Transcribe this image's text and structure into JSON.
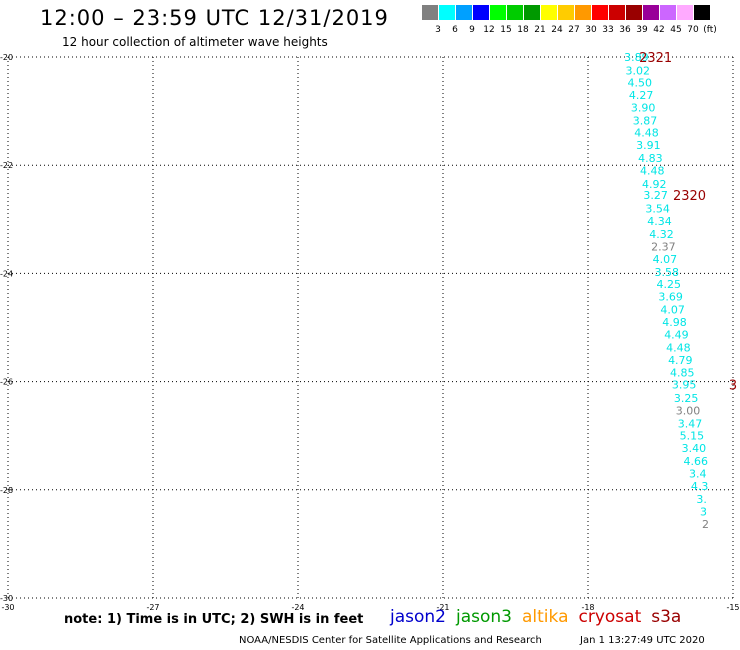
{
  "header": {
    "title": "12:00 – 23:59 UTC 12/31/2019",
    "subtitle": "12 hour collection of altimeter wave heights"
  },
  "legend_scale": {
    "labels": [
      "3",
      "6",
      "9",
      "12",
      "15",
      "18",
      "21",
      "24",
      "27",
      "30",
      "33",
      "36",
      "39",
      "42",
      "45",
      "70",
      "(ft)"
    ],
    "colors": [
      "#808080",
      "#00ffff",
      "#00a0ff",
      "#0000ff",
      "#00ff00",
      "#00cc00",
      "#009900",
      "#ffff00",
      "#ffcc00",
      "#ff9900",
      "#ff0000",
      "#cc0000",
      "#990000",
      "#990099",
      "#cc66ff",
      "#ffaaff",
      "#000000"
    ]
  },
  "footer": {
    "note": "note: 1) Time is in UTC; 2) SWH is in feet",
    "credit": "NOAA/NESDIS Center for Satellite Applications and Research",
    "timestamp": "Jan  1 13:27:49 UTC 2020"
  },
  "satellites": [
    {
      "name": "jason2",
      "color": "#0000cc"
    },
    {
      "name": "jason3",
      "color": "#009900"
    },
    {
      "name": "altika",
      "color": "#ff9900"
    },
    {
      "name": "cryosat",
      "color": "#cc0000"
    },
    {
      "name": "s3a",
      "color": "#990000"
    }
  ],
  "chart_data": {
    "type": "scatter",
    "x_ticks": [
      "-30",
      "-27",
      "-24",
      "-21",
      "-18",
      "-15"
    ],
    "y_ticks": [
      "-20",
      "-22",
      "-24",
      "-26",
      "-28",
      "-30"
    ],
    "xlim": [
      -30,
      -15
    ],
    "ylim": [
      -30,
      -20
    ],
    "grid": true,
    "track_labels": [
      {
        "text": "2321",
        "lon": -16.6,
        "lat": -20.0,
        "color": "#990000"
      },
      {
        "text": "2320",
        "lon": -15.9,
        "lat": -22.55,
        "color": "#990000"
      },
      {
        "text": "3",
        "lon": -15.0,
        "lat": -26.05,
        "color": "#990000"
      }
    ],
    "points": [
      {
        "lon": -17.0,
        "lat": -20.0,
        "value": "3.89",
        "color": "#00e5e5"
      },
      {
        "lon": -16.97,
        "lat": -20.25,
        "value": "3.02",
        "color": "#00e5e5"
      },
      {
        "lon": -16.93,
        "lat": -20.47,
        "value": "4.50",
        "color": "#00e5e5"
      },
      {
        "lon": -16.9,
        "lat": -20.7,
        "value": "4.27",
        "color": "#00e5e5"
      },
      {
        "lon": -16.86,
        "lat": -20.93,
        "value": "3.90",
        "color": "#00e5e5"
      },
      {
        "lon": -16.82,
        "lat": -21.17,
        "value": "3.87",
        "color": "#00e5e5"
      },
      {
        "lon": -16.79,
        "lat": -21.4,
        "value": "4.48",
        "color": "#00e5e5"
      },
      {
        "lon": -16.75,
        "lat": -21.63,
        "value": "3.91",
        "color": "#00e5e5"
      },
      {
        "lon": -16.71,
        "lat": -21.87,
        "value": "4.83",
        "color": "#00e5e5"
      },
      {
        "lon": -16.67,
        "lat": -22.1,
        "value": "4.48",
        "color": "#00e5e5"
      },
      {
        "lon": -16.63,
        "lat": -22.35,
        "value": "4.92",
        "color": "#00e5e5"
      },
      {
        "lon": -16.6,
        "lat": -22.55,
        "value": "3.27",
        "color": "#00e5e5"
      },
      {
        "lon": -16.56,
        "lat": -22.8,
        "value": "3.54",
        "color": "#00e5e5"
      },
      {
        "lon": -16.52,
        "lat": -23.03,
        "value": "4.34",
        "color": "#00e5e5"
      },
      {
        "lon": -16.48,
        "lat": -23.27,
        "value": "4.32",
        "color": "#00e5e5"
      },
      {
        "lon": -16.44,
        "lat": -23.5,
        "value": "2.37",
        "color": "#808080"
      },
      {
        "lon": -16.41,
        "lat": -23.73,
        "value": "4.07",
        "color": "#00e5e5"
      },
      {
        "lon": -16.37,
        "lat": -23.97,
        "value": "3.58",
        "color": "#00e5e5"
      },
      {
        "lon": -16.33,
        "lat": -24.2,
        "value": "4.25",
        "color": "#00e5e5"
      },
      {
        "lon": -16.29,
        "lat": -24.43,
        "value": "3.69",
        "color": "#00e5e5"
      },
      {
        "lon": -16.25,
        "lat": -24.67,
        "value": "4.07",
        "color": "#00e5e5"
      },
      {
        "lon": -16.21,
        "lat": -24.9,
        "value": "4.98",
        "color": "#00e5e5"
      },
      {
        "lon": -16.17,
        "lat": -25.13,
        "value": "4.49",
        "color": "#00e5e5"
      },
      {
        "lon": -16.13,
        "lat": -25.37,
        "value": "4.48",
        "color": "#00e5e5"
      },
      {
        "lon": -16.09,
        "lat": -25.6,
        "value": "4.79",
        "color": "#00e5e5"
      },
      {
        "lon": -16.05,
        "lat": -25.83,
        "value": "4.85",
        "color": "#00e5e5"
      },
      {
        "lon": -16.01,
        "lat": -26.05,
        "value": "3.95",
        "color": "#00e5e5"
      },
      {
        "lon": -15.97,
        "lat": -26.3,
        "value": "3.25",
        "color": "#00e5e5"
      },
      {
        "lon": -15.93,
        "lat": -26.53,
        "value": "3.00",
        "color": "#808080"
      },
      {
        "lon": -15.89,
        "lat": -26.77,
        "value": "3.47",
        "color": "#00e5e5"
      },
      {
        "lon": -15.85,
        "lat": -27.0,
        "value": "5.15",
        "color": "#00e5e5"
      },
      {
        "lon": -15.81,
        "lat": -27.23,
        "value": "3.40",
        "color": "#00e5e5"
      },
      {
        "lon": -15.77,
        "lat": -27.47,
        "value": "4.66",
        "color": "#00e5e5"
      },
      {
        "lon": -15.73,
        "lat": -27.7,
        "value": "3.4",
        "color": "#00e5e5"
      },
      {
        "lon": -15.69,
        "lat": -27.93,
        "value": "4.3",
        "color": "#00e5e5"
      },
      {
        "lon": -15.65,
        "lat": -28.17,
        "value": "3.",
        "color": "#00e5e5"
      },
      {
        "lon": -15.61,
        "lat": -28.4,
        "value": "3",
        "color": "#00e5e5"
      },
      {
        "lon": -15.57,
        "lat": -28.63,
        "value": "2",
        "color": "#808080"
      }
    ]
  }
}
